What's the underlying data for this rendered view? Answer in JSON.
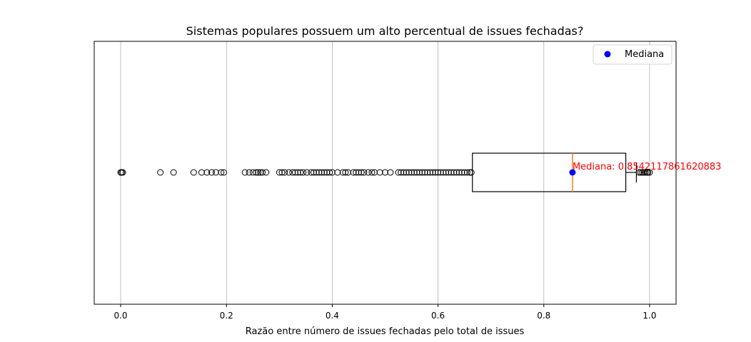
{
  "chart_data": {
    "type": "boxplot",
    "orientation": "horizontal",
    "title": "Sistemas populares possuem um alto percentual de issues fechadas?",
    "xlabel": "Razão entre número de issues fechadas pelo total de issues",
    "ylabel": "",
    "xlim": [
      -0.05,
      1.05
    ],
    "x_ticks": [
      0.0,
      0.2,
      0.4,
      0.6,
      0.8,
      1.0
    ],
    "x_tick_labels": [
      "0.0",
      "0.2",
      "0.4",
      "0.6",
      "0.8",
      "1.0"
    ],
    "grid": "x-major",
    "box": {
      "q1": 0.665,
      "median": 0.8542117861620883,
      "q3": 0.955,
      "whisker_low": 0.665,
      "whisker_high": 0.975
    },
    "median_point": {
      "x": 0.8542117861620883,
      "label": "Mediana",
      "color": "#0000ff"
    },
    "median_annotation": {
      "text": "Mediana: 0.8542117861620883",
      "color": "#ff0000"
    },
    "legend": {
      "position": "top-right",
      "entries": [
        "Mediana"
      ]
    },
    "colors": {
      "box": "#000000",
      "median_line": "#ff7f0e",
      "median_point": "#0000ff",
      "grid": "#b0b0b0"
    },
    "outliers": [
      0.0,
      0.002,
      0.004,
      0.075,
      0.1,
      0.138,
      0.153,
      0.163,
      0.172,
      0.18,
      0.19,
      0.195,
      0.235,
      0.243,
      0.25,
      0.256,
      0.26,
      0.264,
      0.268,
      0.275,
      0.3,
      0.305,
      0.31,
      0.318,
      0.325,
      0.33,
      0.335,
      0.34,
      0.345,
      0.352,
      0.36,
      0.365,
      0.37,
      0.375,
      0.38,
      0.385,
      0.39,
      0.395,
      0.4,
      0.41,
      0.42,
      0.425,
      0.43,
      0.44,
      0.445,
      0.45,
      0.455,
      0.46,
      0.468,
      0.475,
      0.48,
      0.49,
      0.5,
      0.51,
      0.525,
      0.53,
      0.535,
      0.54,
      0.545,
      0.55,
      0.555,
      0.56,
      0.565,
      0.57,
      0.575,
      0.58,
      0.585,
      0.59,
      0.595,
      0.6,
      0.605,
      0.61,
      0.615,
      0.62,
      0.625,
      0.63,
      0.635,
      0.64,
      0.645,
      0.65,
      0.655,
      0.66,
      0.663,
      0.98,
      0.983,
      0.986,
      0.989,
      0.992,
      0.995,
      0.997,
      1.0
    ]
  }
}
